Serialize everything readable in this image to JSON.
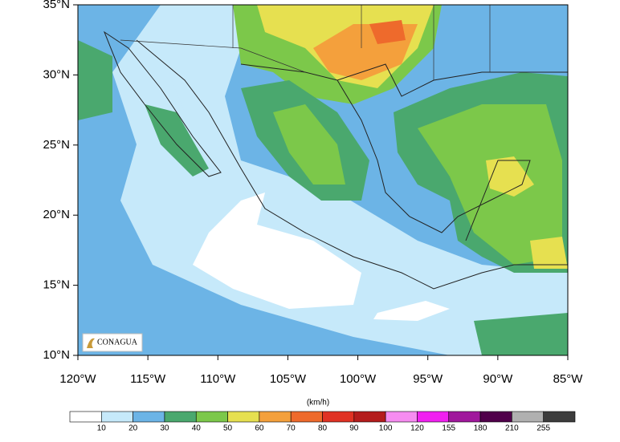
{
  "map": {
    "lat_ticks": [
      "35°N",
      "30°N",
      "25°N",
      "20°N",
      "15°N",
      "10°N"
    ],
    "lon_ticks": [
      "120°W",
      "115°W",
      "110°W",
      "105°W",
      "100°W",
      "95°W",
      "90°W",
      "85°W"
    ],
    "logo": "CONAGUA",
    "colorbar": {
      "unit": "(km/h)",
      "labels": [
        "10",
        "20",
        "30",
        "40",
        "50",
        "60",
        "70",
        "80",
        "90",
        "100",
        "120",
        "155",
        "180",
        "210",
        "255"
      ],
      "colors": [
        "#ffffff",
        "#c6e9fa",
        "#6cb4e6",
        "#4aa86e",
        "#7cc84a",
        "#e6e050",
        "#f4a03c",
        "#ee6a2c",
        "#e03224",
        "#b41c1c",
        "#f68cf0",
        "#f020f0",
        "#a0189c",
        "#50004a",
        "#b0b0b0",
        "#3c3c3c"
      ]
    }
  }
}
